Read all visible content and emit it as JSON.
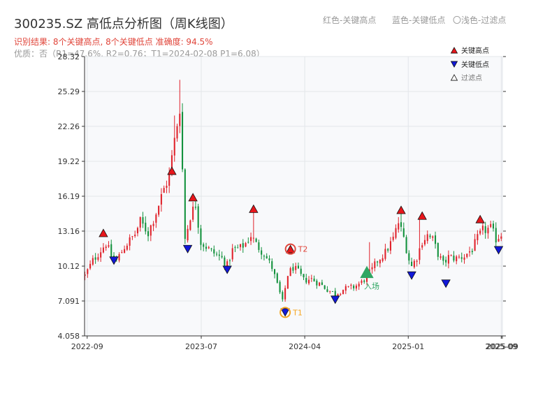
{
  "header": {
    "title": "300235.SZ 高低点分析图（周K线图）",
    "result_line": "识别结果: 8个关键高点, 8个关键低点  准确度: 94.5%",
    "quality_line": "优质：否（R1=47.6%, R2=0.76；T1=2024-02-08 P1=6.08）"
  },
  "top_legend": {
    "red": "红色-关键高点",
    "blue": "蓝色-关键低点",
    "light": "〇浅色-过滤点"
  },
  "colors": {
    "up": "#e0222b",
    "down": "#12913c",
    "high_marker": "#e8161b",
    "low_marker": "#1118d9",
    "t1_ring": "#f5a623",
    "t2_ring": "#e0453a",
    "entry": "#2fa663",
    "grid": "#e3e6ea",
    "plot_bg": "#f8f9fb"
  },
  "chart_data": {
    "type": "candlestick",
    "title": "300235.SZ 高低点分析图（周K线图）",
    "ylim": [
      4.058,
      28.32
    ],
    "yticks": [
      "4.058",
      "7.091",
      "10.12",
      "13.16",
      "16.19",
      "19.22",
      "22.26",
      "25.29",
      "28.32"
    ],
    "xlim": [
      "2022-08-25",
      "2025-09-10"
    ],
    "xticks": [
      {
        "date": "2022-09-01",
        "label": "2022-09"
      },
      {
        "date": "2023-07-01",
        "label": "2023-07"
      },
      {
        "date": "2024-04-01",
        "label": "2024-04"
      },
      {
        "date": "2025-01-01",
        "label": "2025-01"
      },
      {
        "date": "2025-09-05",
        "label": "2025-09"
      },
      {
        "date": "2025-09-08",
        "label": "2025-09"
      }
    ],
    "legend": {
      "position": "top-right",
      "high": "关键高点",
      "low": "关键低点",
      "filtered": "过滤点"
    },
    "price_path": [
      [
        "2022-08-26",
        9.3
      ],
      [
        "2022-09-16",
        10.6
      ],
      [
        "2022-10-21",
        12.1
      ],
      [
        "2022-11-04",
        11.0
      ],
      [
        "2022-11-18",
        10.6
      ],
      [
        "2022-12-09",
        11.8
      ],
      [
        "2023-01-06",
        12.9
      ],
      [
        "2023-01-20",
        14.0
      ],
      [
        "2023-02-10",
        13.0
      ],
      [
        "2023-03-03",
        14.8
      ],
      [
        "2023-03-24",
        16.8
      ],
      [
        "2023-04-07",
        18.0
      ],
      [
        "2023-04-21",
        21.0
      ],
      [
        "2023-05-05",
        24.0
      ],
      [
        "2023-05-12",
        18.5
      ],
      [
        "2023-05-19",
        12.5
      ],
      [
        "2023-06-02",
        14.5
      ],
      [
        "2023-06-16",
        15.5
      ],
      [
        "2023-06-30",
        12.2
      ],
      [
        "2023-07-28",
        11.4
      ],
      [
        "2023-08-25",
        10.8
      ],
      [
        "2023-09-08",
        10.2
      ],
      [
        "2023-09-22",
        11.5
      ],
      [
        "2023-10-13",
        11.7
      ],
      [
        "2023-10-27",
        12.1
      ],
      [
        "2023-11-10",
        12.8
      ],
      [
        "2023-11-24",
        12.0
      ],
      [
        "2023-12-15",
        11.2
      ],
      [
        "2024-01-05",
        10.0
      ],
      [
        "2024-01-19",
        8.5
      ],
      [
        "2024-02-02",
        7.0
      ],
      [
        "2024-02-16",
        9.4
      ],
      [
        "2024-03-01",
        10.0
      ],
      [
        "2024-03-15",
        9.6
      ],
      [
        "2024-03-29",
        8.9
      ],
      [
        "2024-04-19",
        9.0
      ],
      [
        "2024-05-10",
        8.6
      ],
      [
        "2024-05-31",
        8.1
      ],
      [
        "2024-06-21",
        7.7
      ],
      [
        "2024-07-12",
        8.1
      ],
      [
        "2024-08-09",
        8.3
      ],
      [
        "2024-08-30",
        8.7
      ],
      [
        "2024-09-27",
        9.8
      ],
      [
        "2024-10-11",
        10.6
      ],
      [
        "2024-11-01",
        11.3
      ],
      [
        "2024-11-22",
        12.5
      ],
      [
        "2024-12-06",
        13.9
      ],
      [
        "2024-12-20",
        12.6
      ],
      [
        "2025-01-03",
        10.7
      ],
      [
        "2025-01-10",
        10.1
      ],
      [
        "2025-01-24",
        10.9
      ],
      [
        "2025-02-07",
        12.3
      ],
      [
        "2025-02-21",
        12.8
      ],
      [
        "2025-03-07",
        12.4
      ],
      [
        "2025-03-21",
        11.2
      ],
      [
        "2025-04-04",
        10.3
      ],
      [
        "2025-04-18",
        10.9
      ],
      [
        "2025-05-09",
        10.8
      ],
      [
        "2025-05-30",
        11.0
      ],
      [
        "2025-06-20",
        11.6
      ],
      [
        "2025-07-04",
        12.5
      ],
      [
        "2025-07-18",
        13.2
      ],
      [
        "2025-08-08",
        13.4
      ],
      [
        "2025-08-22",
        12.5
      ],
      [
        "2025-09-05",
        12.9
      ]
    ],
    "spikes": [
      {
        "date": "2023-05-05",
        "high": 26.3
      },
      {
        "date": "2023-04-21",
        "high": 23.2
      },
      {
        "date": "2023-11-17",
        "high": 14.8
      },
      {
        "date": "2024-09-20",
        "high": 12.2
      },
      {
        "date": "2024-12-13",
        "high": 14.8
      },
      {
        "date": "2025-01-31",
        "high": 14.3
      }
    ],
    "key_highs": [
      {
        "date": "2022-10-14",
        "value": 13.0
      },
      {
        "date": "2023-04-14",
        "value": 18.4
      },
      {
        "date": "2023-06-09",
        "value": 16.1
      },
      {
        "date": "2023-11-17",
        "value": 15.1
      },
      {
        "date": "2024-12-13",
        "value": 15.0
      },
      {
        "date": "2025-02-07",
        "value": 14.5
      },
      {
        "date": "2025-07-11",
        "value": 14.2
      },
      {
        "date": "2024-02-23",
        "value": 11.6
      }
    ],
    "key_lows": [
      {
        "date": "2022-11-11",
        "value": 10.6
      },
      {
        "date": "2023-05-26",
        "value": 11.6
      },
      {
        "date": "2023-09-08",
        "value": 9.8
      },
      {
        "date": "2024-02-09",
        "value": 6.1
      },
      {
        "date": "2024-06-21",
        "value": 7.2
      },
      {
        "date": "2025-01-10",
        "value": 9.3
      },
      {
        "date": "2025-04-11",
        "value": 8.6
      },
      {
        "date": "2025-08-29",
        "value": 11.5
      }
    ],
    "t1": {
      "date": "2024-02-09",
      "value": 6.1,
      "label": "T1"
    },
    "t2": {
      "date": "2024-02-23",
      "value": 11.6,
      "label": "T2"
    },
    "entry": {
      "date": "2024-09-13",
      "value": 9.6,
      "label": "入场"
    }
  }
}
